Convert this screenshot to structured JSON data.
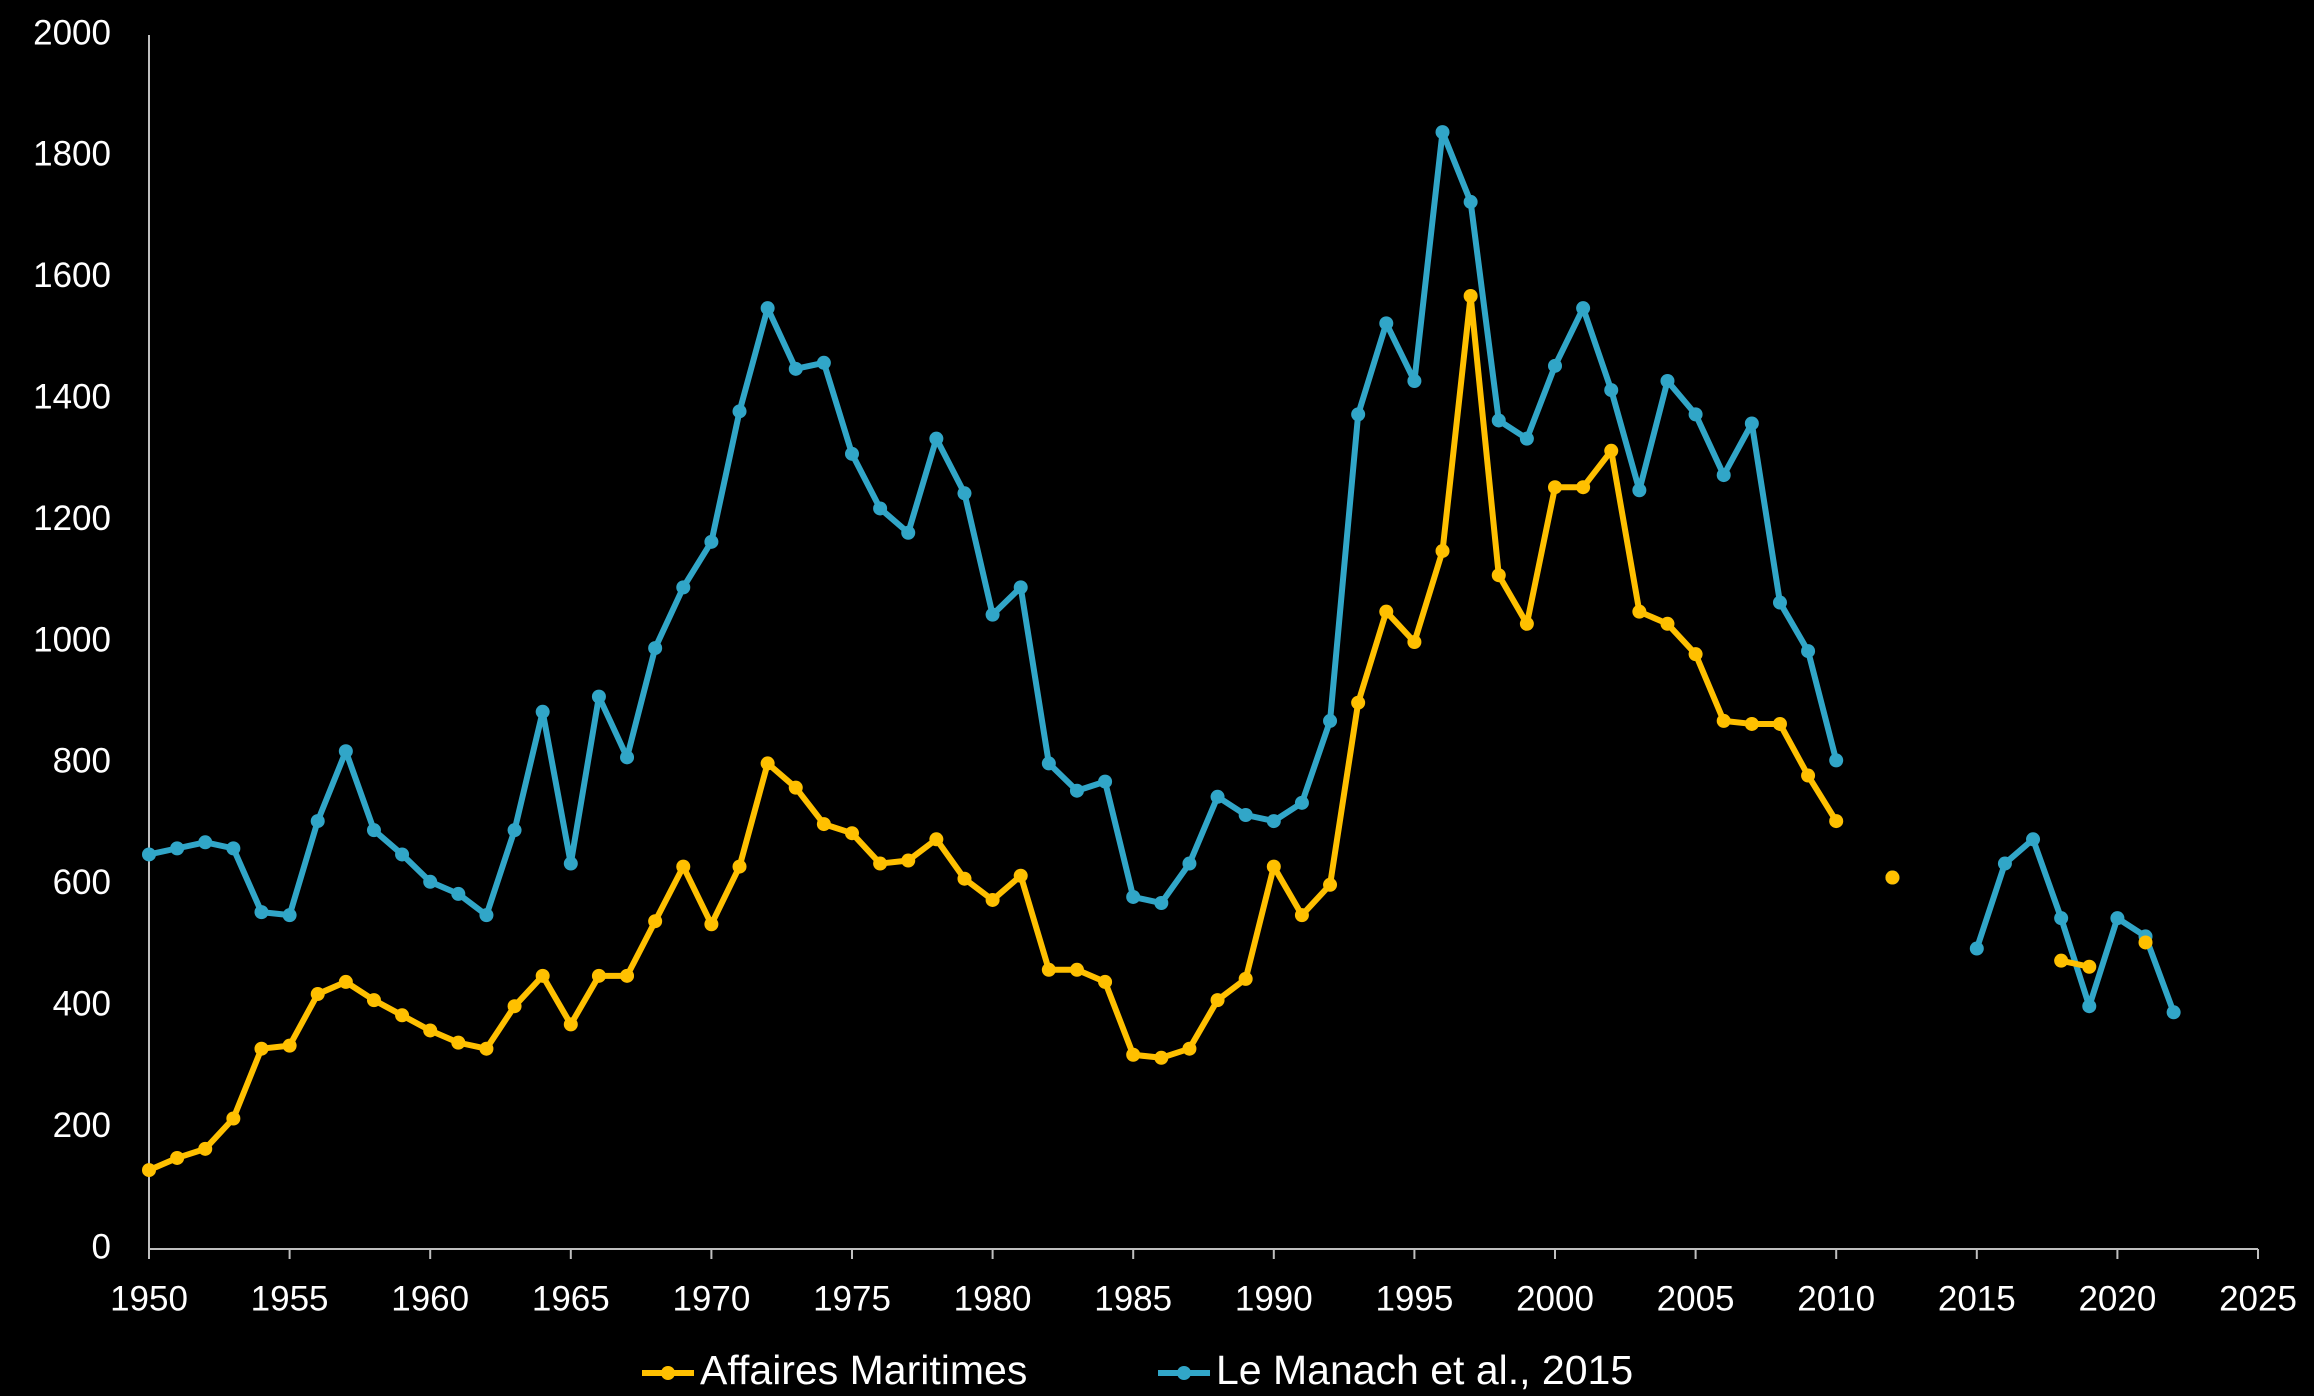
{
  "chart_data": {
    "type": "line",
    "x": [
      1950,
      1951,
      1952,
      1953,
      1954,
      1955,
      1956,
      1957,
      1958,
      1959,
      1960,
      1961,
      1962,
      1963,
      1964,
      1965,
      1966,
      1967,
      1968,
      1969,
      1970,
      1971,
      1972,
      1973,
      1974,
      1975,
      1976,
      1977,
      1978,
      1979,
      1980,
      1981,
      1982,
      1983,
      1984,
      1985,
      1986,
      1987,
      1988,
      1989,
      1990,
      1991,
      1992,
      1993,
      1994,
      1995,
      1996,
      1997,
      1998,
      1999,
      2000,
      2001,
      2002,
      2003,
      2004,
      2005,
      2006,
      2007,
      2008,
      2009,
      2010,
      2011,
      2012,
      2013,
      2014,
      2015,
      2016,
      2017,
      2018,
      2019,
      2020,
      2021,
      2022
    ],
    "series": [
      {
        "name": "Le Manach et al., 2015",
        "color": "#31a6c8",
        "values": [
          650,
          660,
          670,
          660,
          555,
          550,
          705,
          820,
          690,
          650,
          605,
          585,
          550,
          690,
          885,
          635,
          910,
          810,
          990,
          1090,
          1165,
          1380,
          1550,
          1450,
          1460,
          1310,
          1220,
          1180,
          1335,
          1245,
          1045,
          1090,
          800,
          755,
          770,
          580,
          570,
          635,
          745,
          715,
          705,
          735,
          870,
          1375,
          1525,
          1430,
          1840,
          1725,
          1365,
          1335,
          1455,
          1550,
          1415,
          1250,
          1430,
          1375,
          1275,
          1360,
          1065,
          985,
          805,
          null,
          612,
          null,
          null,
          495,
          635,
          675,
          545,
          400,
          545,
          515,
          390
        ]
      },
      {
        "name": "Affaires Maritimes",
        "color": "#ffc000",
        "values": [
          130,
          150,
          165,
          215,
          330,
          335,
          420,
          440,
          410,
          385,
          360,
          340,
          330,
          400,
          450,
          370,
          450,
          450,
          540,
          630,
          535,
          630,
          800,
          760,
          700,
          685,
          635,
          640,
          675,
          610,
          575,
          615,
          460,
          460,
          440,
          320,
          315,
          330,
          410,
          445,
          630,
          550,
          600,
          900,
          1050,
          1000,
          1150,
          1570,
          1110,
          1030,
          1255,
          1255,
          1315,
          1050,
          1030,
          980,
          870,
          865,
          865,
          780,
          705,
          null,
          612,
          null,
          null,
          null,
          null,
          null,
          475,
          465,
          null,
          505,
          null
        ]
      }
    ],
    "xlim": [
      1950,
      2025
    ],
    "xticks": [
      1950,
      1955,
      1960,
      1965,
      1970,
      1975,
      1980,
      1985,
      1990,
      1995,
      2000,
      2005,
      2010,
      2015,
      2020,
      2025
    ],
    "ylim": [
      0,
      2000
    ],
    "yticks": [
      0,
      200,
      400,
      600,
      800,
      1000,
      1200,
      1400,
      1600,
      1800,
      2000
    ],
    "grid": false,
    "legend": "bottom"
  }
}
